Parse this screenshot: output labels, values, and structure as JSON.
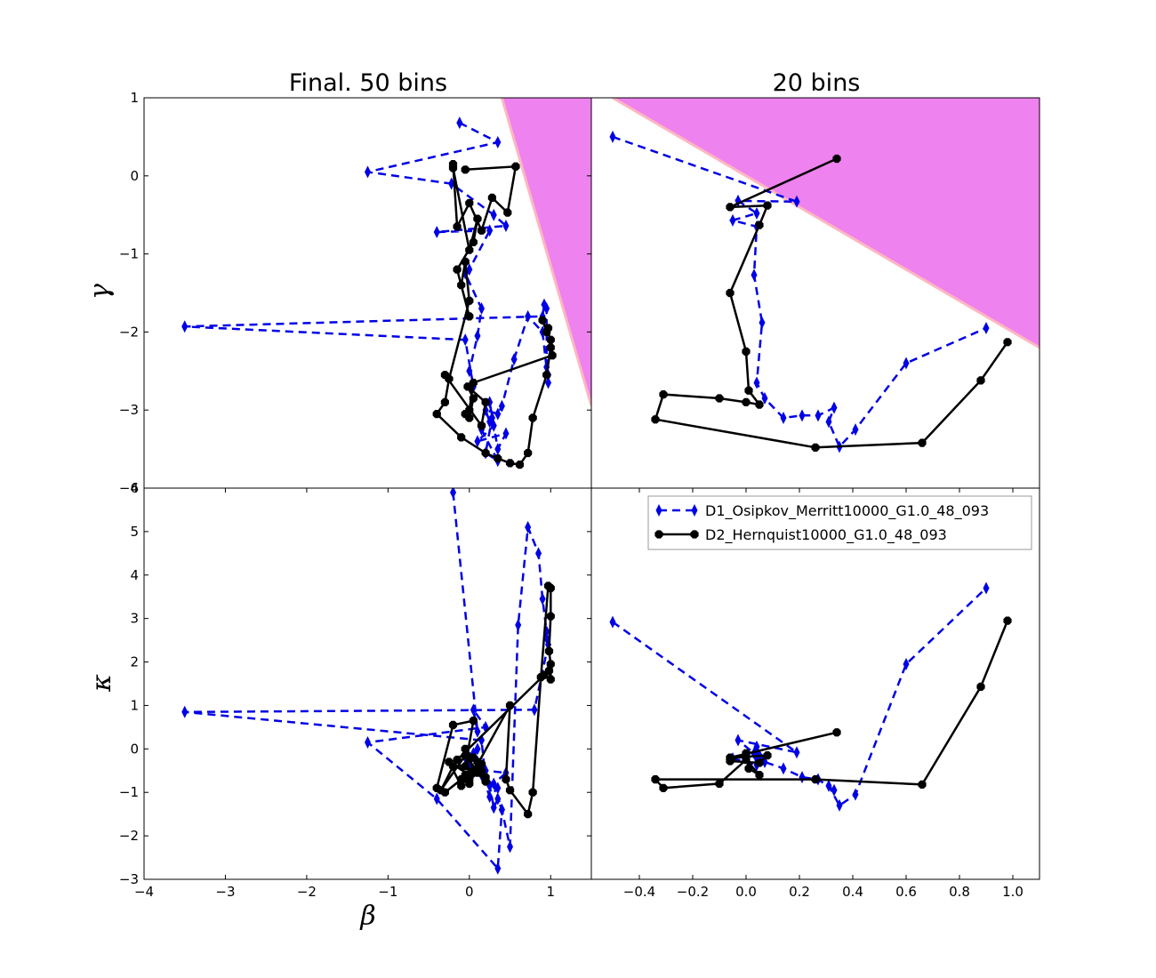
{
  "figure": {
    "titles": [
      "Final. 50 bins",
      "20 bins"
    ],
    "xlabel": "β",
    "ylabel_top": "γ",
    "ylabel_bottom": "κ"
  },
  "legend": {
    "placement": "upper-right of bottom-right panel",
    "entries": [
      {
        "label": "D1_Osipkov_Merritt10000_G1.0_48_093",
        "color": "#0000e6",
        "style": "dashed",
        "marker": "thin-diamond"
      },
      {
        "label": "D2_Hernquist10000_G1.0_48_093",
        "color": "#000000",
        "style": "solid",
        "marker": "octagon"
      }
    ]
  },
  "colors": {
    "series1": "#0000e6",
    "series2": "#000000",
    "forbidden_region": "#ee82ee",
    "forbidden_edge": "#ffb6c1"
  },
  "chart_data": [
    {
      "type": "line",
      "panel": "top-left",
      "title": "Final. 50 bins",
      "xlabel": "",
      "ylabel": "γ",
      "xlim": [
        -4,
        1.5
      ],
      "ylim": [
        -4,
        1
      ],
      "xticks": [],
      "yticks": [
        "−4",
        "−3",
        "−2",
        "−1",
        "0",
        "1"
      ],
      "grid": false,
      "shaded_region": {
        "color": "#ee82ee",
        "boundary": [
          [
            0.4,
            1
          ],
          [
            1.5,
            -2.94
          ]
        ]
      },
      "series": [
        {
          "name": "D1_Osipkov_Merritt10000_G1.0_48_093",
          "x": [
            -0.12,
            0.35,
            -1.25,
            -0.22,
            0.3,
            0.45,
            -0.4,
            0.25,
            0.0,
            -0.05,
            0.15,
            0.1,
            0.0,
            0.05,
            -0.05,
            -3.5,
            0.9,
            0.92,
            0.95,
            0.95,
            0.97,
            0.97,
            0.9,
            0.72,
            0.55,
            0.4,
            0.35,
            0.2,
            0.25,
            0.3,
            0.1,
            0.45,
            0.35,
            0.25,
            0.28,
            0.2,
            0.35,
            0.15
          ],
          "y": [
            0.68,
            0.43,
            0.05,
            -0.1,
            -0.5,
            -0.64,
            -0.72,
            -0.7,
            -1.2,
            -1.25,
            -1.7,
            -2.05,
            -2.5,
            -2.7,
            -2.1,
            -1.93,
            -1.8,
            -1.65,
            -1.7,
            -2.45,
            -2.55,
            -2.65,
            -2.0,
            -1.8,
            -2.35,
            -2.95,
            -3.05,
            -3.0,
            -3.15,
            -3.2,
            -3.4,
            -3.3,
            -3.5,
            -2.9,
            -3.1,
            -3.55,
            -3.65,
            -3.25
          ]
        },
        {
          "name": "D2_Hernquist10000_G1.0_48_093",
          "x": [
            -0.05,
            0.57,
            0.47,
            0.28,
            0.15,
            0.0,
            -0.15,
            -0.2,
            -0.2,
            0.0,
            0.1,
            0.05,
            -0.15,
            0.0,
            -0.1,
            -0.05,
            0.0,
            -0.25,
            -0.3,
            -0.4,
            -0.1,
            0.2,
            0.35,
            0.5,
            0.62,
            0.72,
            0.78,
            0.95,
            1.0,
            0.97,
            0.95,
            0.9,
            1.0,
            1.02,
            0.05,
            0.0,
            -0.05,
            0.0,
            0.05,
            -0.02,
            0.2,
            0.15,
            -0.3
          ],
          "y": [
            0.08,
            0.12,
            -0.47,
            -0.28,
            -0.7,
            -0.35,
            -0.65,
            0.15,
            0.1,
            -0.95,
            -0.55,
            -0.85,
            -1.2,
            -1.8,
            -1.4,
            -1.1,
            -1.6,
            -2.6,
            -2.9,
            -3.05,
            -3.35,
            -3.55,
            -3.62,
            -3.68,
            -3.7,
            -3.55,
            -3.1,
            -2.55,
            -2.2,
            -1.95,
            -2.0,
            -1.85,
            -2.1,
            -2.3,
            -2.65,
            -3.0,
            -3.05,
            -3.1,
            -2.85,
            -2.7,
            -2.9,
            -3.2,
            -2.55
          ]
        }
      ]
    },
    {
      "type": "line",
      "panel": "top-right",
      "title": "20 bins",
      "xlabel": "",
      "ylabel": "",
      "xlim": [
        -0.58,
        1.1
      ],
      "ylim": [
        -4,
        1
      ],
      "xticks": [],
      "yticks": [],
      "grid": false,
      "shaded_region": {
        "color": "#ee82ee",
        "boundary": [
          [
            -0.5,
            1
          ],
          [
            1.1,
            -2.2
          ]
        ]
      },
      "series": [
        {
          "name": "D1_Osipkov_Merritt10000_G1.0_48_093",
          "x": [
            -0.5,
            0.19,
            -0.03,
            0.04,
            -0.05,
            0.04,
            0.03,
            0.06,
            0.04,
            0.07,
            0.14,
            0.21,
            0.27,
            0.33,
            0.31,
            0.35,
            0.41,
            0.6,
            0.9
          ],
          "y": [
            0.5,
            -0.33,
            -0.32,
            -0.48,
            -0.57,
            -0.65,
            -1.27,
            -1.88,
            -2.65,
            -2.85,
            -3.1,
            -3.07,
            -3.07,
            -2.97,
            -3.15,
            -3.47,
            -3.25,
            -2.4,
            -1.95
          ]
        },
        {
          "name": "D2_Hernquist10000_G1.0_48_093",
          "x": [
            0.34,
            -0.06,
            0.08,
            0.05,
            -0.06,
            0.0,
            0.01,
            0.05,
            0.0,
            -0.1,
            -0.31,
            -0.34,
            0.26,
            0.66,
            0.88,
            0.98
          ],
          "y": [
            0.22,
            -0.4,
            -0.38,
            -0.63,
            -1.5,
            -2.25,
            -2.75,
            -2.93,
            -2.9,
            -2.85,
            -2.8,
            -3.12,
            -3.48,
            -3.42,
            -2.62,
            -2.13
          ]
        }
      ]
    },
    {
      "type": "line",
      "panel": "bottom-left",
      "title": "",
      "xlabel": "β",
      "ylabel": "κ",
      "xlim": [
        -4,
        1.5
      ],
      "ylim": [
        -3,
        6
      ],
      "xticks": [
        "−4",
        "−3",
        "−2",
        "−1",
        "0",
        "1"
      ],
      "yticks": [
        "−3",
        "−2",
        "−1",
        "0",
        "1",
        "2",
        "3",
        "4",
        "5",
        "6"
      ],
      "grid": false,
      "series": [
        {
          "name": "D1_Osipkov_Merritt10000_G1.0_48_093",
          "x": [
            -0.2,
            0.1,
            0.05,
            0.2,
            -1.25,
            -0.4,
            0.35,
            0.4,
            0.5,
            0.6,
            0.72,
            0.85,
            0.9,
            0.95,
            0.95,
            0.97,
            0.8,
            -3.5,
            0.15,
            0.2,
            0.25,
            0.3,
            0.35,
            0.4,
            0.3,
            0.45,
            0.2,
            0.15,
            0.35,
            0.25,
            0.1,
            -0.05,
            0.05,
            0.1,
            0.0,
            0.0
          ],
          "y": [
            5.9,
            0.4,
            0.9,
            0.5,
            0.15,
            -1.15,
            -2.75,
            -1.4,
            -2.25,
            2.85,
            5.1,
            4.5,
            3.45,
            2.7,
            2.55,
            2.4,
            0.9,
            0.85,
            0.2,
            -0.7,
            -0.85,
            -1.35,
            -1.15,
            -1.4,
            -0.8,
            -0.55,
            -0.5,
            -0.6,
            -0.9,
            -1.1,
            -0.3,
            -0.2,
            -0.1,
            0.0,
            -0.4,
            -0.6
          ]
        },
        {
          "name": "D2_Hernquist10000_G1.0_48_093",
          "x": [
            -0.4,
            -0.2,
            0.05,
            -0.05,
            0.0,
            0.05,
            -0.1,
            -0.25,
            0.0,
            -0.05,
            0.1,
            0.15,
            0.0,
            0.5,
            0.45,
            0.5,
            0.72,
            0.78,
            0.88,
            0.97,
            1.0,
            1.0,
            0.98,
            1.0,
            1.0,
            0.98,
            0.92,
            -0.15,
            -0.05,
            0.0,
            0.1,
            0.2,
            0.05,
            0.15,
            -0.3,
            -0.1,
            0.05,
            -0.2,
            -0.35,
            -0.05,
            0.2,
            0.1
          ],
          "y": [
            -0.9,
            0.55,
            0.65,
            -0.4,
            -0.2,
            -0.5,
            -0.85,
            -0.3,
            -0.6,
            0.0,
            -0.3,
            -0.5,
            -0.7,
            1.0,
            -0.7,
            -0.95,
            -1.5,
            -1.0,
            1.65,
            3.75,
            3.7,
            3.05,
            2.25,
            1.95,
            1.6,
            1.8,
            1.7,
            -0.25,
            -0.6,
            -0.8,
            -0.45,
            -0.65,
            -0.2,
            -0.35,
            -1.0,
            -0.7,
            -0.5,
            -0.4,
            -0.95,
            -0.15,
            -0.75,
            -0.55
          ]
        }
      ]
    },
    {
      "type": "line",
      "panel": "bottom-right",
      "title": "",
      "xlabel": "",
      "ylabel": "",
      "xlim": [
        -0.58,
        1.1
      ],
      "ylim": [
        -3,
        6
      ],
      "xticks": [
        "−0.4",
        "−0.2",
        "0.0",
        "0.2",
        "0.4",
        "0.6",
        "0.8",
        "1.0"
      ],
      "yticks": [],
      "grid": false,
      "series": [
        {
          "name": "D1_Osipkov_Merritt10000_G1.0_48_093",
          "x": [
            -0.5,
            0.19,
            -0.03,
            0.04,
            -0.05,
            0.04,
            0.03,
            0.06,
            0.04,
            0.07,
            0.14,
            0.21,
            0.27,
            0.33,
            0.31,
            0.35,
            0.41,
            0.6,
            0.9
          ],
          "y": [
            2.92,
            -0.08,
            0.2,
            -0.15,
            -0.22,
            -0.37,
            -0.1,
            -0.25,
            0.05,
            -0.3,
            -0.45,
            -0.65,
            -0.7,
            -0.95,
            -0.85,
            -1.3,
            -1.05,
            1.95,
            3.7
          ]
        },
        {
          "name": "D2_Hernquist10000_G1.0_48_093",
          "x": [
            0.34,
            -0.06,
            0.08,
            0.05,
            -0.06,
            0.0,
            0.01,
            0.05,
            0.0,
            -0.1,
            -0.31,
            -0.34,
            0.26,
            0.66,
            0.88,
            0.98
          ],
          "y": [
            0.38,
            -0.2,
            -0.15,
            -0.32,
            -0.28,
            -0.1,
            -0.45,
            -0.6,
            -0.25,
            -0.8,
            -0.9,
            -0.7,
            -0.7,
            -0.82,
            1.43,
            2.95
          ]
        }
      ]
    }
  ]
}
